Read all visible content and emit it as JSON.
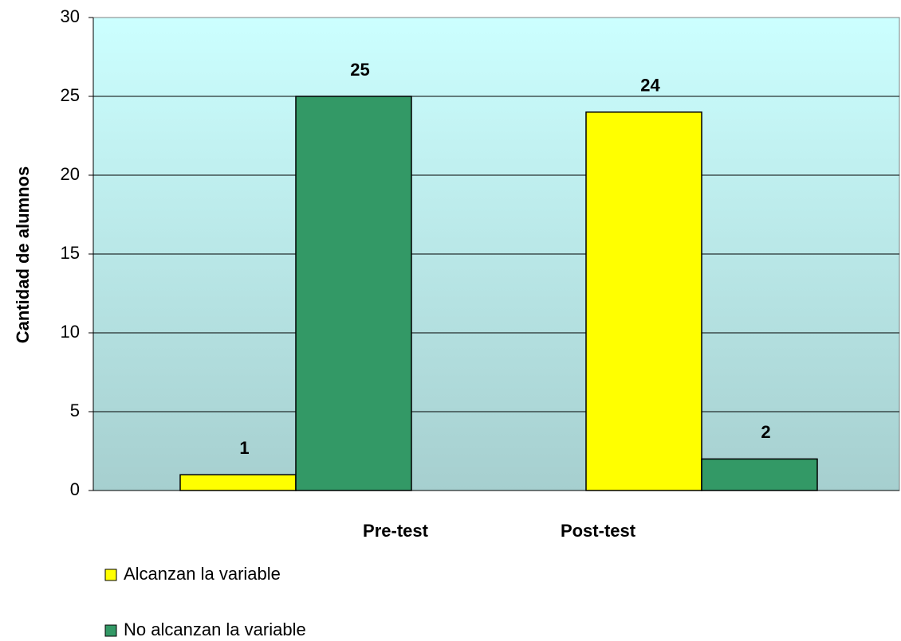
{
  "chart_data": {
    "type": "bar",
    "y_label": "Cantidad de alumnos",
    "categories": [
      "Pre-test",
      "Post-test"
    ],
    "series": [
      {
        "name": "Alcanzan la variable",
        "color": "#ffff00",
        "values": [
          1,
          24
        ]
      },
      {
        "name": "No alcanzan la variable",
        "color": "#339966",
        "values": [
          25,
          2
        ]
      }
    ],
    "ylim": [
      0,
      30
    ],
    "yticks": [
      0,
      5,
      10,
      15,
      20,
      25,
      30
    ],
    "grid": true
  }
}
